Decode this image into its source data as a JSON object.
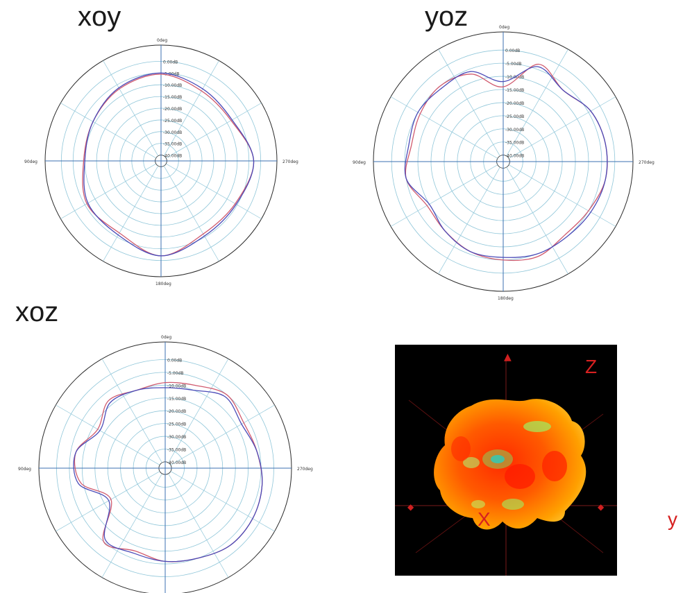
{
  "panels": [
    {
      "id": "xoy",
      "title": "xoy"
    },
    {
      "id": "yoz",
      "title": "yoz"
    },
    {
      "id": "xoz",
      "title": "xoz"
    }
  ],
  "view3d": {
    "axis_labels": {
      "z": "Z",
      "x": "X",
      "y": "y"
    }
  },
  "colors": {
    "series_a": "#d05a6e",
    "series_b": "#4b4bb8",
    "grid": "#8fc6d9",
    "axis": "#3b6fb0",
    "outer": "#2a2a2a"
  },
  "chart_data": [
    {
      "type": "polar-line",
      "title": "xoy",
      "angle_labels": [
        "0deg",
        "90deg",
        "180deg",
        "270deg"
      ],
      "radial_tick_labels": [
        "0.00dB",
        "-5.00dB",
        "-10.00dB",
        "-15.00dB",
        "-20.00dB",
        "-25.00dB",
        "-30.00dB",
        "-35.00dB",
        "-40.00dB"
      ],
      "rlim": [
        -40,
        0
      ],
      "angles_deg": [
        0,
        30,
        60,
        90,
        120,
        150,
        180,
        210,
        240,
        270,
        300,
        330
      ],
      "series": [
        {
          "values": [
            -5.5,
            -7,
            -9,
            -9.5,
            -6,
            -7,
            -2,
            -6.5,
            -6,
            -3,
            -8,
            -8
          ]
        },
        {
          "values": [
            -5,
            -6.5,
            -9,
            -10,
            -6.5,
            -6,
            -2,
            -5.5,
            -5.5,
            -3,
            -7.5,
            -7
          ]
        }
      ]
    },
    {
      "type": "polar-line",
      "title": "yoz",
      "angle_labels": [
        "0deg",
        "90deg",
        "180deg",
        "270deg"
      ],
      "radial_tick_labels": [
        "0.00dB",
        "-5.00dB",
        "-10.00dB",
        "-15.00dB",
        "-20.00dB",
        "-25.00dB",
        "-30.00dB",
        "-35.00dB",
        "-40.00dB"
      ],
      "rlim": [
        -40,
        0
      ],
      "angles_deg": [
        0,
        20,
        40,
        60,
        80,
        100,
        120,
        140,
        160,
        180,
        200,
        220,
        240,
        260,
        280,
        300,
        320,
        340
      ],
      "series": [
        {
          "values": [
            -14,
            -7,
            -5,
            -6,
            -7,
            -5,
            -9,
            -8,
            -6,
            -5,
            -4,
            -6,
            -5,
            -3,
            -3,
            -4,
            -7,
            -3
          ]
        },
        {
          "values": [
            -12,
            -6,
            -6,
            -5,
            -6,
            -5,
            -10,
            -8,
            -6,
            -6,
            -5,
            -5,
            -4,
            -3,
            -3,
            -4,
            -7,
            -4
          ]
        }
      ]
    },
    {
      "type": "polar-line",
      "title": "xoz",
      "angle_labels": [
        "0deg",
        "90deg",
        "180deg",
        "270deg"
      ],
      "radial_tick_labels": [
        "0.00dB",
        "-5.00dB",
        "-10.00dB",
        "-15.00dB",
        "-20.00dB",
        "-25.00dB",
        "-30.00dB",
        "-35.00dB",
        "-40.00dB"
      ],
      "rlim": [
        -40,
        0
      ],
      "angles_deg": [
        0,
        20,
        40,
        60,
        80,
        100,
        120,
        140,
        160,
        180,
        200,
        220,
        240,
        260,
        280,
        300,
        320,
        340
      ],
      "series": [
        {
          "values": [
            -9,
            -10,
            -8,
            -12,
            -7,
            -9,
            -18,
            -5,
            -8,
            -6,
            -5,
            -3,
            -3,
            -4,
            -6,
            -7,
            -5,
            -8
          ]
        },
        {
          "values": [
            -11,
            -10,
            -9,
            -13,
            -7,
            -8,
            -17,
            -6,
            -7,
            -6,
            -5,
            -3,
            -3,
            -4,
            -6,
            -8,
            -6,
            -10
          ]
        }
      ]
    }
  ]
}
